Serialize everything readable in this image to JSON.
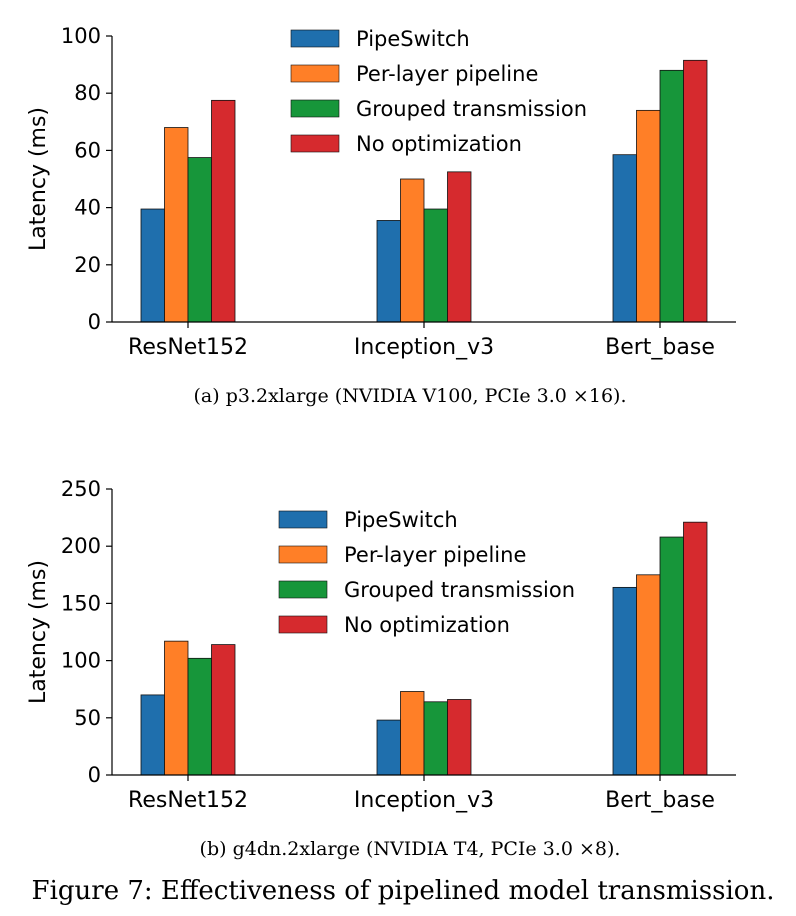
{
  "figure_caption": "Figure 7: Effectiveness of pipelined model transmission.",
  "colors": {
    "PipeSwitch": "#1f6fad",
    "Per-layer pipeline": "#ff7f27",
    "Grouped transmission": "#17963a",
    "No optimization": "#d62a2e"
  },
  "chart_data": [
    {
      "type": "bar",
      "caption": "(a)  p3.2xlarge (NVIDIA V100, PCIe 3.0 ×16).",
      "ylabel": "Latency (ms)",
      "xlabel": "",
      "ylim": [
        0,
        100
      ],
      "yticks": [
        0,
        20,
        40,
        60,
        80,
        100
      ],
      "categories": [
        "ResNet152",
        "Inception_v3",
        "Bert_base"
      ],
      "legend_position": "top-center",
      "grid": false,
      "series": [
        {
          "name": "PipeSwitch",
          "values": [
            39.5,
            35.5,
            58.5
          ]
        },
        {
          "name": "Per-layer pipeline",
          "values": [
            68,
            50,
            74
          ]
        },
        {
          "name": "Grouped transmission",
          "values": [
            57.5,
            39.5,
            88
          ]
        },
        {
          "name": "No optimization",
          "values": [
            77.5,
            52.5,
            91.5
          ]
        }
      ]
    },
    {
      "type": "bar",
      "caption": "(b)  g4dn.2xlarge (NVIDIA T4, PCIe 3.0 ×8).",
      "ylabel": "Latency (ms)",
      "xlabel": "",
      "ylim": [
        0,
        250
      ],
      "yticks": [
        0,
        50,
        100,
        150,
        200,
        250
      ],
      "categories": [
        "ResNet152",
        "Inception_v3",
        "Bert_base"
      ],
      "legend_position": "top-center",
      "grid": false,
      "series": [
        {
          "name": "PipeSwitch",
          "values": [
            70,
            48,
            164
          ]
        },
        {
          "name": "Per-layer pipeline",
          "values": [
            117,
            73,
            175
          ]
        },
        {
          "name": "Grouped transmission",
          "values": [
            102,
            64,
            208
          ]
        },
        {
          "name": "No optimization",
          "values": [
            114,
            66,
            221
          ]
        }
      ]
    }
  ]
}
